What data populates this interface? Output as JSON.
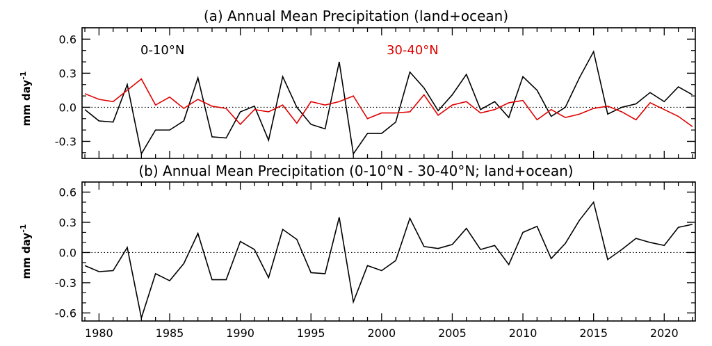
{
  "chart_data": [
    {
      "type": "line",
      "title": "(a) Annual Mean Precipitation (land+ocean)",
      "ylabel": "mm day",
      "ylabel_sup": "-1",
      "xlim": [
        1978.8,
        2022.2
      ],
      "ylim": [
        -0.45,
        0.7
      ],
      "yticks": [
        -0.3,
        0.0,
        0.3,
        0.6
      ],
      "ytick_labels": [
        "-0.3",
        "0.0",
        "0.3",
        "0.6"
      ],
      "zero_line": "dotted",
      "x": [
        1979,
        1980,
        1981,
        1982,
        1983,
        1984,
        1985,
        1986,
        1987,
        1988,
        1989,
        1990,
        1991,
        1992,
        1993,
        1994,
        1995,
        1996,
        1997,
        1998,
        1999,
        2000,
        2001,
        2002,
        2003,
        2004,
        2005,
        2006,
        2007,
        2008,
        2009,
        2010,
        2011,
        2012,
        2013,
        2014,
        2015,
        2016,
        2017,
        2018,
        2019,
        2020,
        2021,
        2022
      ],
      "series": [
        {
          "name": "0-10°N",
          "color": "#000000",
          "values": [
            -0.02,
            -0.12,
            -0.13,
            0.2,
            -0.41,
            -0.2,
            -0.2,
            -0.12,
            0.26,
            -0.26,
            -0.27,
            -0.04,
            0.01,
            -0.29,
            0.27,
            0.0,
            -0.15,
            -0.19,
            0.4,
            -0.41,
            -0.23,
            -0.23,
            -0.13,
            0.31,
            0.17,
            -0.03,
            0.11,
            0.29,
            -0.02,
            0.05,
            -0.09,
            0.27,
            0.15,
            -0.08,
            0.0,
            0.26,
            0.49,
            -0.06,
            0.0,
            0.03,
            0.13,
            0.05,
            0.18,
            0.11
          ]
        },
        {
          "name": "30-40°N",
          "color": "#e00000",
          "values": [
            0.12,
            0.07,
            0.05,
            0.15,
            0.25,
            0.02,
            0.09,
            -0.01,
            0.07,
            0.01,
            -0.01,
            -0.15,
            -0.02,
            -0.04,
            0.02,
            -0.14,
            0.05,
            0.02,
            0.05,
            0.1,
            -0.1,
            -0.05,
            -0.05,
            -0.04,
            0.11,
            -0.07,
            0.02,
            0.05,
            -0.05,
            -0.02,
            0.04,
            0.06,
            -0.11,
            -0.02,
            -0.09,
            -0.06,
            -0.01,
            0.01,
            -0.04,
            -0.11,
            0.04,
            -0.02,
            -0.08,
            -0.17
          ]
        }
      ]
    },
    {
      "type": "line",
      "title": "(b) Annual Mean Precipitation (0-10°N - 30-40°N; land+ocean)",
      "ylabel": "mm day",
      "ylabel_sup": "-1",
      "xlabel": "",
      "xlim": [
        1978.8,
        2022.2
      ],
      "ylim": [
        -0.68,
        0.7
      ],
      "yticks": [
        -0.6,
        -0.3,
        0.0,
        0.3,
        0.6
      ],
      "ytick_labels": [
        "-0.6",
        "-0.3",
        "0.0",
        "0.3",
        "0.6"
      ],
      "xticks": [
        1980,
        1985,
        1990,
        1995,
        2000,
        2005,
        2010,
        2015,
        2020
      ],
      "xtick_labels": [
        "1980",
        "1985",
        "1990",
        "1995",
        "2000",
        "2005",
        "2010",
        "2015",
        "2020"
      ],
      "zero_line": "dotted",
      "x": [
        1979,
        1980,
        1981,
        1982,
        1983,
        1984,
        1985,
        1986,
        1987,
        1988,
        1989,
        1990,
        1991,
        1992,
        1993,
        1994,
        1995,
        1996,
        1997,
        1998,
        1999,
        2000,
        2001,
        2002,
        2003,
        2004,
        2005,
        2006,
        2007,
        2008,
        2009,
        2010,
        2011,
        2012,
        2013,
        2014,
        2015,
        2016,
        2017,
        2018,
        2019,
        2020,
        2021,
        2022
      ],
      "series": [
        {
          "color": "#000000",
          "values": [
            -0.13,
            -0.19,
            -0.18,
            0.05,
            -0.65,
            -0.21,
            -0.28,
            -0.11,
            0.19,
            -0.27,
            -0.27,
            0.11,
            0.03,
            -0.25,
            0.23,
            0.13,
            -0.2,
            -0.21,
            0.35,
            -0.49,
            -0.13,
            -0.18,
            -0.08,
            0.34,
            0.06,
            0.04,
            0.08,
            0.24,
            0.03,
            0.07,
            -0.12,
            0.2,
            0.26,
            -0.06,
            0.09,
            0.32,
            0.5,
            -0.07,
            0.03,
            0.14,
            0.1,
            0.07,
            0.25,
            0.28
          ]
        }
      ]
    }
  ]
}
